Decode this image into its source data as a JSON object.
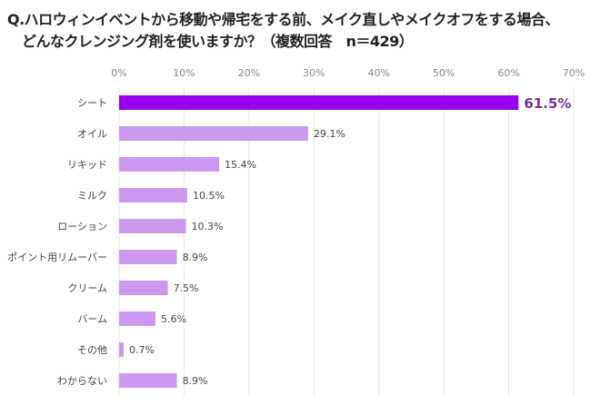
{
  "chart_data": {
    "type": "bar",
    "orientation": "horizontal",
    "title_lines": [
      "Q.ハロウィンイベントから移動や帰宅をする前、メイク直しやメイクオフをする場合、",
      "どんなクレンジング剤を使いますか？（複数回答　n＝429）"
    ],
    "categories": [
      "シート",
      "オイル",
      "リキッド",
      "ミルク",
      "ローション",
      "ポイント用リムーバー",
      "クリーム",
      "バーム",
      "その他",
      "わからない"
    ],
    "values": [
      61.5,
      29.1,
      15.4,
      10.5,
      10.3,
      8.9,
      7.5,
      5.6,
      0.7,
      8.9
    ],
    "value_labels": [
      "61.5%",
      "29.1%",
      "15.4%",
      "10.5%",
      "10.3%",
      "8.9%",
      "7.5%",
      "5.6%",
      "0.7%",
      "8.9%"
    ],
    "xlim": [
      0,
      70
    ],
    "x_ticks": [
      "0%",
      "10%",
      "20%",
      "30%",
      "40%",
      "50%",
      "60%",
      "70%"
    ],
    "x_axis_position": "top",
    "grid": true,
    "colors": {
      "highlight": "#9900ef",
      "bar": "#cc99ee",
      "highlight_label": "#7030a0",
      "grid": "#e6e6e6"
    }
  }
}
